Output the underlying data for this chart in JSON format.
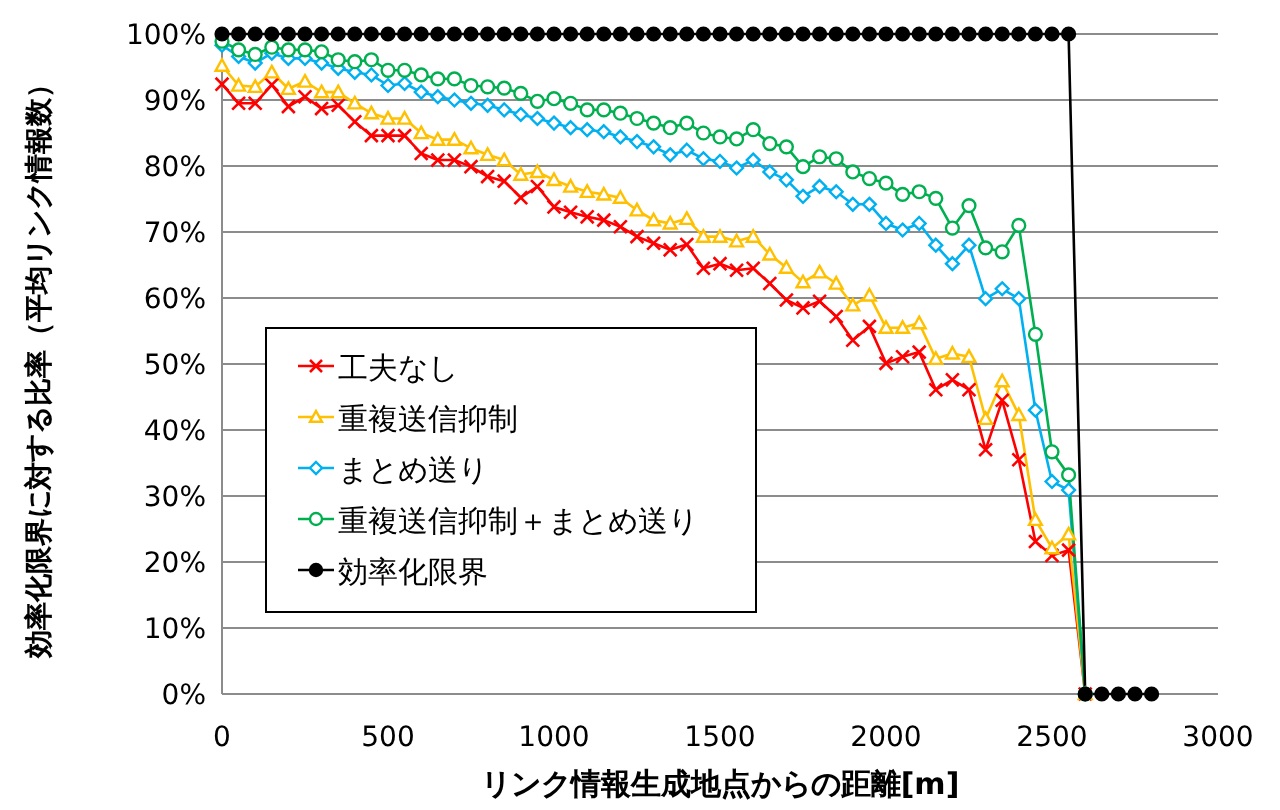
{
  "chart_data": {
    "type": "line",
    "xlabel": "リンク情報生成地点からの距離[m]",
    "ylabel": "効率化限界に対する比率（平均リンク情報数）",
    "x": [
      0,
      50,
      100,
      150,
      200,
      250,
      300,
      350,
      400,
      450,
      500,
      550,
      600,
      650,
      700,
      750,
      800,
      850,
      900,
      950,
      1000,
      1050,
      1100,
      1150,
      1200,
      1250,
      1300,
      1350,
      1400,
      1450,
      1500,
      1550,
      1600,
      1650,
      1700,
      1750,
      1800,
      1850,
      1900,
      1950,
      2000,
      2050,
      2100,
      2150,
      2200,
      2250,
      2300,
      2350,
      2400,
      2450,
      2500,
      2550,
      2600,
      2650,
      2700,
      2750,
      2800
    ],
    "xlim": [
      0,
      3000
    ],
    "xticks": [
      0,
      500,
      1000,
      1500,
      2000,
      2500,
      3000
    ],
    "ylim": [
      0,
      100
    ],
    "yticks": [
      {
        "value": 0,
        "label": "0%"
      },
      {
        "value": 10,
        "label": "10%"
      },
      {
        "value": 20,
        "label": "20%"
      },
      {
        "value": 30,
        "label": "30%"
      },
      {
        "value": 40,
        "label": "40%"
      },
      {
        "value": 50,
        "label": "50%"
      },
      {
        "value": 60,
        "label": "60%"
      },
      {
        "value": 70,
        "label": "70%"
      },
      {
        "value": 80,
        "label": "80%"
      },
      {
        "value": 90,
        "label": "90%"
      },
      {
        "value": 100,
        "label": "100%"
      }
    ],
    "grid": "y",
    "legend": "left",
    "series": [
      {
        "name": "工夫なし",
        "color": "#ff0000",
        "marker": "cross",
        "values": [
          92.4,
          89.5,
          89.5,
          92.3,
          89,
          90.5,
          88.7,
          89.2,
          86.7,
          84.6,
          84.6,
          84.6,
          81.9,
          80.9,
          80.9,
          79.9,
          78.4,
          77.7,
          75.2,
          76.9,
          73.8,
          73,
          72.3,
          71.8,
          70.8,
          69.3,
          68.3,
          67.3,
          68.1,
          64.5,
          65.2,
          64.2,
          64.5,
          62.2,
          59.7,
          58.5,
          59.5,
          57.2,
          53.6,
          55.7,
          50.1,
          51.1,
          51.8,
          46.1,
          47.6,
          46.1,
          37,
          44.5,
          35.5,
          23.1,
          21,
          21.8,
          0,
          null,
          null,
          null,
          null
        ]
      },
      {
        "name": "重複送信抑制",
        "color": "#ffc000",
        "marker": "triangle",
        "values": [
          95.2,
          92.2,
          92,
          94.2,
          91.7,
          92.8,
          91.2,
          91.2,
          89.5,
          88,
          87.2,
          87.2,
          85,
          84,
          84,
          82.7,
          81.7,
          80.9,
          78.7,
          79.1,
          77.9,
          76.9,
          76.1,
          75.7,
          75.2,
          73.3,
          71.8,
          71.3,
          72,
          69.3,
          69.3,
          68.6,
          69.3,
          66.6,
          64.6,
          62.4,
          63.9,
          62.2,
          58.9,
          60.4,
          55.5,
          55.5,
          56.2,
          50.8,
          51.6,
          51.1,
          41.7,
          47.4,
          42.3,
          26.4,
          22.1,
          24.2,
          0,
          null,
          null,
          null,
          null
        ]
      },
      {
        "name": "まとめ送り",
        "color": "#00b0f0",
        "marker": "diamond",
        "values": [
          98.3,
          96.6,
          95.6,
          97.1,
          96.3,
          96.3,
          95.6,
          94.8,
          94.2,
          93.8,
          92.2,
          92.5,
          91.2,
          90.5,
          90,
          89.5,
          89.2,
          88.5,
          87.8,
          87.2,
          86.5,
          85.8,
          85.5,
          85.2,
          84.4,
          83.7,
          82.9,
          81.7,
          82.4,
          81.1,
          80.7,
          79.7,
          80.9,
          79.1,
          77.9,
          75.4,
          76.9,
          76.1,
          74.2,
          74.2,
          71.3,
          70.3,
          71.3,
          68,
          65.2,
          68,
          59.9,
          61.4,
          59.9,
          43,
          32.2,
          30.9,
          0,
          null,
          null,
          null,
          null
        ]
      },
      {
        "name": "重複送信抑制＋まとめ送り",
        "color": "#00b050",
        "marker": "circle",
        "values": [
          98.9,
          97.6,
          96.9,
          98,
          97.6,
          97.6,
          97.3,
          96.1,
          95.8,
          96.1,
          94.5,
          94.5,
          93.8,
          93.2,
          93.2,
          92.2,
          92,
          91.8,
          91,
          89.8,
          90.2,
          89.5,
          88.5,
          88.5,
          88,
          87.2,
          86.5,
          85.8,
          86.5,
          85,
          84.4,
          84.1,
          85.5,
          83.4,
          82.9,
          79.9,
          81.4,
          81.1,
          79.1,
          78.1,
          77.4,
          75.7,
          76.1,
          75.1,
          70.6,
          74,
          67.6,
          67,
          71,
          54.5,
          36.7,
          33.2,
          0,
          null,
          null,
          null,
          null
        ]
      },
      {
        "name": "効率化限界",
        "color": "#000000",
        "marker": "circle",
        "values": [
          100,
          100,
          100,
          100,
          100,
          100,
          100,
          100,
          100,
          100,
          100,
          100,
          100,
          100,
          100,
          100,
          100,
          100,
          100,
          100,
          100,
          100,
          100,
          100,
          100,
          100,
          100,
          100,
          100,
          100,
          100,
          100,
          100,
          100,
          100,
          100,
          100,
          100,
          100,
          100,
          100,
          100,
          100,
          100,
          100,
          100,
          100,
          100,
          100,
          100,
          100,
          100,
          0,
          0,
          0,
          0,
          0
        ]
      }
    ]
  }
}
